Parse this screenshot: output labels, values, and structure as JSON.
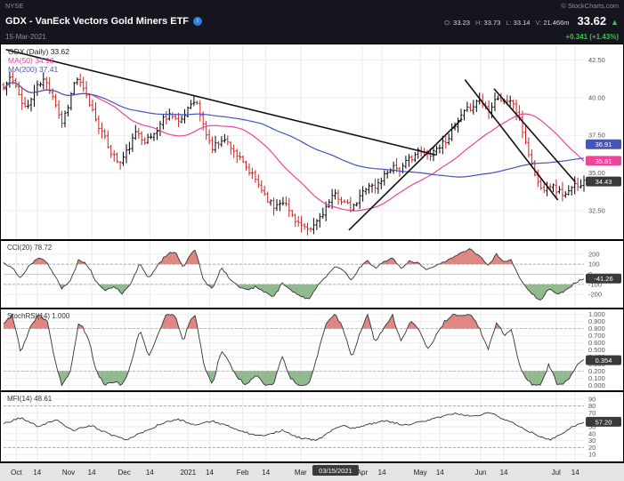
{
  "header": {
    "exchange": "NYSE",
    "copyright": "© StockCharts.com",
    "title": "GDX - VanEck Vectors Gold Miners ETF",
    "date": "15-Mar-2021",
    "price": "33.62",
    "change": "+0.341 (+1.43%)",
    "ohlcv": [
      {
        "name": "open",
        "label": "O:",
        "value": "33.23"
      },
      {
        "name": "high",
        "label": "H:",
        "value": "33.73"
      },
      {
        "name": "low",
        "label": "L:",
        "value": "33.14"
      },
      {
        "name": "volume",
        "label": "V:",
        "value": "21.466m"
      }
    ]
  },
  "colors": {
    "up": "#000000",
    "down": "#cc2222",
    "ma50": "#ee4499",
    "ma200": "#4455bb",
    "fill_red": "#d9736d",
    "fill_green": "#7fae7b",
    "accent_green": "#2ecc40",
    "header_bg": "#15151f",
    "box_dark": "#3a3a3a"
  },
  "main": {
    "legend": [
      {
        "text": "GDX (Daily) 33.62",
        "color": "#222222"
      },
      {
        "text": "MA(50) 34.92",
        "color": "#ee4499"
      },
      {
        "text": "MA(200) 37.41",
        "color": "#4455bb"
      }
    ],
    "price_boxes": [
      {
        "value": "36.91",
        "num": 36.91,
        "color": "#4455bb"
      },
      {
        "value": "35.81",
        "num": 35.81,
        "color": "#ee4499"
      },
      {
        "value": "34.43",
        "num": 34.43,
        "color": "#3a3a3a"
      }
    ]
  },
  "xaxis": {
    "labels": [
      {
        "label": "Oct",
        "pos": 0.022
      },
      {
        "label": "14",
        "pos": 0.058
      },
      {
        "label": "Nov",
        "pos": 0.112
      },
      {
        "label": "14",
        "pos": 0.152
      },
      {
        "label": "Dec",
        "pos": 0.208
      },
      {
        "label": "14",
        "pos": 0.252
      },
      {
        "label": "2021",
        "pos": 0.318
      },
      {
        "label": "14",
        "pos": 0.355
      },
      {
        "label": "Feb",
        "pos": 0.412
      },
      {
        "label": "14",
        "pos": 0.452
      },
      {
        "label": "Mar",
        "pos": 0.512
      },
      {
        "label": "Apr",
        "pos": 0.618
      },
      {
        "label": "14",
        "pos": 0.652
      },
      {
        "label": "May",
        "pos": 0.718
      },
      {
        "label": "14",
        "pos": 0.752
      },
      {
        "label": "Jun",
        "pos": 0.822
      },
      {
        "label": "14",
        "pos": 0.862
      },
      {
        "label": "Jul",
        "pos": 0.952
      },
      {
        "label": "14",
        "pos": 0.985
      }
    ],
    "crosshair": {
      "label": "03/15/2021",
      "pos": 0.572
    }
  },
  "chart_data": [
    {
      "id": "price",
      "type": "ohlc",
      "title": "GDX (Daily)",
      "bars": 190,
      "ylim": [
        30.6,
        43.6
      ],
      "yticks": [
        {
          "v": 42.5,
          "label": "42.50"
        },
        {
          "v": 40.0,
          "label": "40.00"
        },
        {
          "v": 37.5,
          "label": "37.50"
        },
        {
          "v": 35.0,
          "label": "35.00"
        },
        {
          "v": 32.5,
          "label": "32.50"
        }
      ],
      "close_anchors": [
        [
          0,
          40.6
        ],
        [
          0.012,
          41.4
        ],
        [
          0.025,
          40.3
        ],
        [
          0.04,
          39.2
        ],
        [
          0.055,
          40.6
        ],
        [
          0.07,
          41.2
        ],
        [
          0.085,
          40.2
        ],
        [
          0.1,
          38.3
        ],
        [
          0.112,
          39.6
        ],
        [
          0.125,
          41.4
        ],
        [
          0.14,
          40.3
        ],
        [
          0.155,
          39
        ],
        [
          0.17,
          37.6
        ],
        [
          0.185,
          36.4
        ],
        [
          0.2,
          35.6
        ],
        [
          0.215,
          36.6
        ],
        [
          0.23,
          37.8
        ],
        [
          0.245,
          37.1
        ],
        [
          0.26,
          37.6
        ],
        [
          0.275,
          38.6
        ],
        [
          0.29,
          39
        ],
        [
          0.305,
          38.2
        ],
        [
          0.318,
          39.4
        ],
        [
          0.33,
          40
        ],
        [
          0.345,
          38
        ],
        [
          0.36,
          36.6
        ],
        [
          0.375,
          37.3
        ],
        [
          0.39,
          36.9
        ],
        [
          0.405,
          36
        ],
        [
          0.42,
          35.2
        ],
        [
          0.435,
          34.5
        ],
        [
          0.45,
          33.6
        ],
        [
          0.465,
          32.7
        ],
        [
          0.48,
          33.3
        ],
        [
          0.495,
          32.3
        ],
        [
          0.51,
          31.6
        ],
        [
          0.525,
          31
        ],
        [
          0.54,
          31.8
        ],
        [
          0.557,
          32.8
        ],
        [
          0.572,
          33.6
        ],
        [
          0.585,
          33.1
        ],
        [
          0.6,
          32.5
        ],
        [
          0.613,
          33.3
        ],
        [
          0.627,
          34.3
        ],
        [
          0.64,
          34
        ],
        [
          0.655,
          34.8
        ],
        [
          0.67,
          35.5
        ],
        [
          0.685,
          35.2
        ],
        [
          0.7,
          36
        ],
        [
          0.715,
          36.4
        ],
        [
          0.73,
          36.2
        ],
        [
          0.745,
          36.6
        ],
        [
          0.76,
          37.1
        ],
        [
          0.775,
          37.9
        ],
        [
          0.79,
          38.8
        ],
        [
          0.805,
          39.4
        ],
        [
          0.82,
          39.9
        ],
        [
          0.835,
          39.2
        ],
        [
          0.85,
          40.1
        ],
        [
          0.862,
          39.7
        ],
        [
          0.875,
          39.9
        ],
        [
          0.888,
          38.6
        ],
        [
          0.9,
          37
        ],
        [
          0.912,
          35.3
        ],
        [
          0.925,
          33.9
        ],
        [
          0.94,
          34.3
        ],
        [
          0.955,
          33.8
        ],
        [
          0.97,
          33.5
        ],
        [
          0.985,
          34.2
        ],
        [
          1,
          34.4
        ]
      ],
      "trendlines": [
        [
          0.004,
          43.2,
          0.745,
          36.2
        ],
        [
          0.595,
          31.2,
          0.79,
          38.6
        ],
        [
          0.795,
          41.2,
          0.955,
          33.2
        ],
        [
          0.845,
          40.6,
          0.985,
          34.4
        ]
      ]
    },
    {
      "id": "cci",
      "type": "line",
      "label": "CCI(20) 78.72",
      "ylim": [
        -330,
        330
      ],
      "yticks": [
        {
          "v": 200,
          "label": "200"
        },
        {
          "v": 100,
          "label": "100"
        },
        {
          "v": 0,
          "label": "0"
        },
        {
          "v": -100,
          "label": "-100"
        },
        {
          "v": -200,
          "label": "-200"
        }
      ],
      "thresholds": [
        100,
        -100
      ],
      "zero": true,
      "fill_above": 100,
      "fill_below": -100,
      "box": {
        "value": "-41.26",
        "num": -41.26
      },
      "anchors": [
        [
          0,
          120
        ],
        [
          0.015,
          60
        ],
        [
          0.03,
          -40
        ],
        [
          0.045,
          90
        ],
        [
          0.06,
          170
        ],
        [
          0.075,
          120
        ],
        [
          0.09,
          -30
        ],
        [
          0.1,
          -140
        ],
        [
          0.115,
          -60
        ],
        [
          0.13,
          150
        ],
        [
          0.145,
          90
        ],
        [
          0.16,
          -80
        ],
        [
          0.175,
          -170
        ],
        [
          0.19,
          -120
        ],
        [
          0.205,
          -190
        ],
        [
          0.22,
          -80
        ],
        [
          0.235,
          110
        ],
        [
          0.25,
          -40
        ],
        [
          0.265,
          80
        ],
        [
          0.28,
          190
        ],
        [
          0.295,
          230
        ],
        [
          0.31,
          60
        ],
        [
          0.318,
          160
        ],
        [
          0.33,
          240
        ],
        [
          0.345,
          -60
        ],
        [
          0.36,
          -150
        ],
        [
          0.375,
          60
        ],
        [
          0.39,
          -40
        ],
        [
          0.405,
          -120
        ],
        [
          0.42,
          -160
        ],
        [
          0.435,
          -120
        ],
        [
          0.45,
          -180
        ],
        [
          0.465,
          -230
        ],
        [
          0.48,
          -90
        ],
        [
          0.495,
          -160
        ],
        [
          0.51,
          -210
        ],
        [
          0.525,
          -250
        ],
        [
          0.54,
          -120
        ],
        [
          0.557,
          -20
        ],
        [
          0.572,
          80
        ],
        [
          0.585,
          40
        ],
        [
          0.6,
          -60
        ],
        [
          0.613,
          60
        ],
        [
          0.627,
          140
        ],
        [
          0.64,
          60
        ],
        [
          0.655,
          120
        ],
        [
          0.67,
          160
        ],
        [
          0.685,
          60
        ],
        [
          0.7,
          130
        ],
        [
          0.715,
          110
        ],
        [
          0.73,
          40
        ],
        [
          0.745,
          90
        ],
        [
          0.76,
          130
        ],
        [
          0.775,
          170
        ],
        [
          0.79,
          210
        ],
        [
          0.805,
          250
        ],
        [
          0.82,
          180
        ],
        [
          0.835,
          90
        ],
        [
          0.85,
          200
        ],
        [
          0.862,
          120
        ],
        [
          0.875,
          140
        ],
        [
          0.888,
          -20
        ],
        [
          0.9,
          -120
        ],
        [
          0.912,
          -200
        ],
        [
          0.925,
          -260
        ],
        [
          0.94,
          -140
        ],
        [
          0.955,
          -200
        ],
        [
          0.97,
          -160
        ],
        [
          0.985,
          -80
        ],
        [
          1,
          -41
        ]
      ]
    },
    {
      "id": "stochrsi",
      "type": "line",
      "label": "StochRSI(14) 1.000",
      "ylim": [
        -0.07,
        1.07
      ],
      "yticks": [
        {
          "v": 1.0,
          "label": "1.000"
        },
        {
          "v": 0.9,
          "label": "0.900"
        },
        {
          "v": 0.8,
          "label": "0.800"
        },
        {
          "v": 0.7,
          "label": "0.700"
        },
        {
          "v": 0.6,
          "label": "0.600"
        },
        {
          "v": 0.5,
          "label": "0.500"
        },
        {
          "v": 0.4,
          "label": "0.400"
        },
        {
          "v": 0.3,
          "label": "0.300"
        },
        {
          "v": 0.2,
          "label": "0.200"
        },
        {
          "v": 0.1,
          "label": "0.100"
        },
        {
          "v": 0.0,
          "label": "0.000"
        }
      ],
      "thresholds": [
        0.8,
        0.2
      ],
      "zero": false,
      "fill_above": 0.8,
      "fill_below": 0.2,
      "box": {
        "value": "0.354",
        "num": 0.354
      },
      "anchors": [
        [
          0,
          0.85
        ],
        [
          0.015,
          1
        ],
        [
          0.03,
          0.45
        ],
        [
          0.045,
          0.8
        ],
        [
          0.06,
          1
        ],
        [
          0.075,
          0.9
        ],
        [
          0.09,
          0.3
        ],
        [
          0.1,
          0
        ],
        [
          0.115,
          0.2
        ],
        [
          0.13,
          0.9
        ],
        [
          0.145,
          0.7
        ],
        [
          0.16,
          0.2
        ],
        [
          0.175,
          0
        ],
        [
          0.19,
          0.05
        ],
        [
          0.205,
          0
        ],
        [
          0.22,
          0.3
        ],
        [
          0.235,
          0.8
        ],
        [
          0.25,
          0.4
        ],
        [
          0.265,
          0.7
        ],
        [
          0.28,
          1
        ],
        [
          0.295,
          1
        ],
        [
          0.31,
          0.6
        ],
        [
          0.318,
          0.85
        ],
        [
          0.33,
          1
        ],
        [
          0.345,
          0.3
        ],
        [
          0.36,
          0
        ],
        [
          0.375,
          0.5
        ],
        [
          0.39,
          0.3
        ],
        [
          0.405,
          0.1
        ],
        [
          0.42,
          0
        ],
        [
          0.435,
          0.15
        ],
        [
          0.45,
          0
        ],
        [
          0.465,
          0
        ],
        [
          0.48,
          0.4
        ],
        [
          0.495,
          0.1
        ],
        [
          0.51,
          0
        ],
        [
          0.525,
          0
        ],
        [
          0.54,
          0.4
        ],
        [
          0.557,
          0.9
        ],
        [
          0.572,
          1
        ],
        [
          0.585,
          0.8
        ],
        [
          0.6,
          0.4
        ],
        [
          0.613,
          0.7
        ],
        [
          0.627,
          1
        ],
        [
          0.64,
          0.6
        ],
        [
          0.655,
          0.8
        ],
        [
          0.67,
          1
        ],
        [
          0.685,
          0.6
        ],
        [
          0.7,
          0.9
        ],
        [
          0.715,
          0.8
        ],
        [
          0.73,
          0.5
        ],
        [
          0.745,
          0.7
        ],
        [
          0.76,
          0.9
        ],
        [
          0.775,
          1
        ],
        [
          0.79,
          1
        ],
        [
          0.805,
          1
        ],
        [
          0.82,
          0.8
        ],
        [
          0.835,
          0.5
        ],
        [
          0.85,
          0.9
        ],
        [
          0.862,
          0.7
        ],
        [
          0.875,
          0.8
        ],
        [
          0.888,
          0.3
        ],
        [
          0.9,
          0.1
        ],
        [
          0.912,
          0
        ],
        [
          0.925,
          0
        ],
        [
          0.94,
          0.3
        ],
        [
          0.955,
          0
        ],
        [
          0.97,
          0.05
        ],
        [
          0.985,
          0.25
        ],
        [
          1,
          0.354
        ]
      ]
    },
    {
      "id": "mfi",
      "type": "line",
      "label": "MFI(14) 48.61",
      "ylim": [
        0,
        100
      ],
      "yticks": [
        {
          "v": 90,
          "label": "90"
        },
        {
          "v": 80,
          "label": "80"
        },
        {
          "v": 70,
          "label": "70"
        },
        {
          "v": 60,
          "label": "60"
        },
        {
          "v": 50,
          "label": "50"
        },
        {
          "v": 40,
          "label": "40"
        },
        {
          "v": 30,
          "label": "30"
        },
        {
          "v": 20,
          "label": "20"
        },
        {
          "v": 10,
          "label": "10"
        }
      ],
      "thresholds": [
        80,
        20
      ],
      "zero": false,
      "box": {
        "value": "57.20",
        "num": 57.2
      },
      "anchors": [
        [
          0,
          55
        ],
        [
          0.03,
          63
        ],
        [
          0.06,
          50
        ],
        [
          0.09,
          60
        ],
        [
          0.12,
          45
        ],
        [
          0.15,
          52
        ],
        [
          0.18,
          40
        ],
        [
          0.21,
          31
        ],
        [
          0.24,
          42
        ],
        [
          0.27,
          54
        ],
        [
          0.3,
          61
        ],
        [
          0.33,
          52
        ],
        [
          0.36,
          58
        ],
        [
          0.39,
          50
        ],
        [
          0.42,
          41
        ],
        [
          0.45,
          36
        ],
        [
          0.48,
          45
        ],
        [
          0.51,
          34
        ],
        [
          0.54,
          30
        ],
        [
          0.572,
          48.6
        ],
        [
          0.585,
          52
        ],
        [
          0.6,
          47
        ],
        [
          0.63,
          54
        ],
        [
          0.66,
          59
        ],
        [
          0.69,
          52
        ],
        [
          0.72,
          57
        ],
        [
          0.75,
          64
        ],
        [
          0.78,
          69
        ],
        [
          0.81,
          65
        ],
        [
          0.84,
          71
        ],
        [
          0.86,
          61
        ],
        [
          0.88,
          55
        ],
        [
          0.9,
          46
        ],
        [
          0.92,
          37
        ],
        [
          0.94,
          31
        ],
        [
          0.96,
          39
        ],
        [
          0.98,
          50
        ],
        [
          1,
          57.2
        ]
      ]
    }
  ]
}
